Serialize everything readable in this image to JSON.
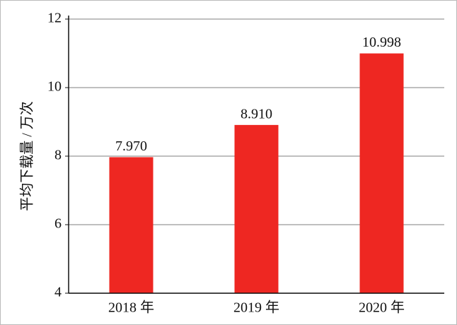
{
  "chart_data": {
    "type": "bar",
    "y_label": "平均下载量 / 万次",
    "categories": [
      "2018 年",
      "2019 年",
      "2020 年"
    ],
    "values": [
      7.97,
      8.91,
      10.998
    ],
    "value_labels": [
      "7.970",
      "8.910",
      "10.998"
    ],
    "color": "#ee2722",
    "ylim": [
      4,
      12
    ],
    "yticks": [
      4,
      6,
      8,
      10,
      12
    ],
    "grid": true
  }
}
